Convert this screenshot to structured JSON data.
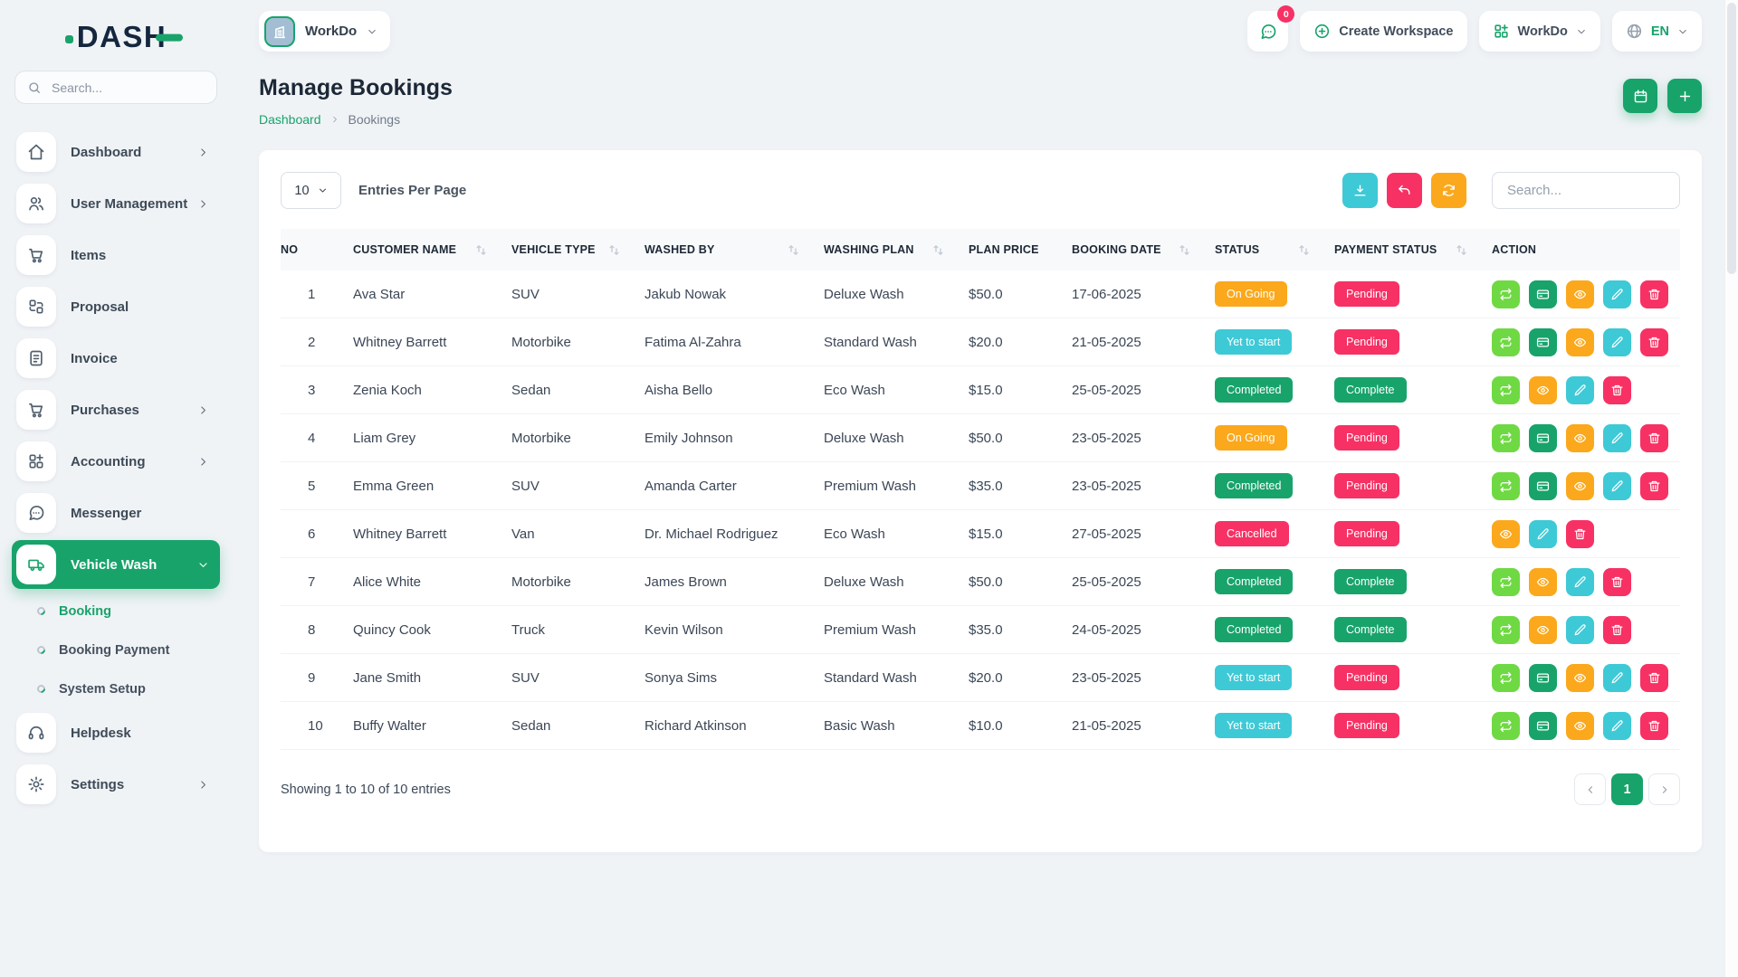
{
  "brand": {
    "name": "DASH"
  },
  "colors": {
    "green": "#18A36B",
    "green_light": "#6FD943",
    "orange": "#FBA81C",
    "cyan": "#3EC9D6",
    "pink": "#F73164"
  },
  "action_colors": {
    "repeat": "green_light",
    "card": "green",
    "eye": "orange",
    "edit": "cyan",
    "trash": "pink"
  },
  "sidebar": {
    "search_placeholder": "Search...",
    "menu": [
      {
        "type": "item",
        "icon": "home",
        "label": "Dashboard",
        "chevron": "right"
      },
      {
        "type": "item",
        "icon": "users",
        "label": "User Management",
        "chevron": "right"
      },
      {
        "type": "item",
        "icon": "cart",
        "label": "Items"
      },
      {
        "type": "item",
        "icon": "proposal",
        "label": "Proposal"
      },
      {
        "type": "item",
        "icon": "invoice",
        "label": "Invoice"
      },
      {
        "type": "item",
        "icon": "cart",
        "label": "Purchases",
        "chevron": "right"
      },
      {
        "type": "item",
        "icon": "grid-plus",
        "label": "Accounting",
        "chevron": "right"
      },
      {
        "type": "item",
        "icon": "chat",
        "label": "Messenger"
      },
      {
        "type": "item",
        "icon": "truck",
        "label": "Vehicle Wash",
        "chevron": "down",
        "active": true
      },
      {
        "type": "subitem",
        "label": "Booking",
        "active": true
      },
      {
        "type": "subitem",
        "label": "Booking Payment"
      },
      {
        "type": "subitem",
        "label": "System Setup"
      },
      {
        "type": "item",
        "icon": "headset",
        "label": "Helpdesk"
      },
      {
        "type": "item",
        "icon": "gear",
        "label": "Settings",
        "chevron": "right"
      }
    ]
  },
  "topbar": {
    "workspace": {
      "label": "WorkDo",
      "icon": "building"
    },
    "messages": {
      "icon": "chat",
      "badge": "0"
    },
    "create_workspace": {
      "label": "Create Workspace",
      "icon": "plus-circle"
    },
    "workspace_menu": {
      "label": "WorkDo",
      "icon": "grid-plus"
    },
    "language": {
      "label": "EN",
      "icon": "globe"
    }
  },
  "page": {
    "title": "Manage Bookings",
    "breadcrumb": {
      "parent": "Dashboard",
      "current": "Bookings"
    },
    "actions": [
      {
        "icon": "calendar",
        "color": "green",
        "name": "calendar-view-button"
      },
      {
        "icon": "plus",
        "color": "green",
        "name": "add-booking-button"
      }
    ]
  },
  "table_controls": {
    "entries_value": "10",
    "entries_label": "Entries Per Page",
    "search_placeholder": "Search...",
    "buttons": [
      {
        "icon": "download",
        "color": "cyan",
        "name": "export-button"
      },
      {
        "icon": "undo",
        "color": "pink",
        "name": "reset-button"
      },
      {
        "icon": "refresh",
        "color": "orange",
        "name": "reload-button"
      }
    ]
  },
  "table": {
    "headers": [
      {
        "label": "NO",
        "sortable": false
      },
      {
        "label": "CUSTOMER NAME",
        "sortable": true
      },
      {
        "label": "VEHICLE TYPE",
        "sortable": true
      },
      {
        "label": "WASHED BY",
        "sortable": true
      },
      {
        "label": "WASHING PLAN",
        "sortable": true
      },
      {
        "label": "PLAN PRICE",
        "sortable": false
      },
      {
        "label": "BOOKING DATE",
        "sortable": true
      },
      {
        "label": "STATUS",
        "sortable": true
      },
      {
        "label": "PAYMENT STATUS",
        "sortable": true
      },
      {
        "label": "ACTION",
        "sortable": false
      }
    ],
    "rows": [
      {
        "no": "1",
        "customer": "Ava Star",
        "vehicle": "SUV",
        "washed_by": "Jakub Nowak",
        "plan": "Deluxe Wash",
        "price": "$50.0",
        "date": "17-06-2025",
        "status": "On Going",
        "status_color": "orange",
        "payment": "Pending",
        "payment_color": "pink",
        "actions": [
          "repeat",
          "card",
          "eye",
          "edit",
          "trash"
        ]
      },
      {
        "no": "2",
        "customer": "Whitney Barrett",
        "vehicle": "Motorbike",
        "washed_by": "Fatima Al-Zahra",
        "plan": "Standard Wash",
        "price": "$20.0",
        "date": "21-05-2025",
        "status": "Yet to start",
        "status_color": "cyan",
        "payment": "Pending",
        "payment_color": "pink",
        "actions": [
          "repeat",
          "card",
          "eye",
          "edit",
          "trash"
        ]
      },
      {
        "no": "3",
        "customer": "Zenia Koch",
        "vehicle": "Sedan",
        "washed_by": "Aisha Bello",
        "plan": "Eco Wash",
        "price": "$15.0",
        "date": "25-05-2025",
        "status": "Completed",
        "status_color": "green",
        "payment": "Complete",
        "payment_color": "green",
        "actions": [
          "repeat",
          "eye",
          "edit",
          "trash"
        ]
      },
      {
        "no": "4",
        "customer": "Liam Grey",
        "vehicle": "Motorbike",
        "washed_by": "Emily Johnson",
        "plan": "Deluxe Wash",
        "price": "$50.0",
        "date": "23-05-2025",
        "status": "On Going",
        "status_color": "orange",
        "payment": "Pending",
        "payment_color": "pink",
        "actions": [
          "repeat",
          "card",
          "eye",
          "edit",
          "trash"
        ]
      },
      {
        "no": "5",
        "customer": "Emma Green",
        "vehicle": "SUV",
        "washed_by": "Amanda Carter",
        "plan": "Premium Wash",
        "price": "$35.0",
        "date": "23-05-2025",
        "status": "Completed",
        "status_color": "green",
        "payment": "Pending",
        "payment_color": "pink",
        "actions": [
          "repeat",
          "card",
          "eye",
          "edit",
          "trash"
        ]
      },
      {
        "no": "6",
        "customer": "Whitney Barrett",
        "vehicle": "Van",
        "washed_by": "Dr. Michael Rodriguez",
        "plan": "Eco Wash",
        "price": "$15.0",
        "date": "27-05-2025",
        "status": "Cancelled",
        "status_color": "pink",
        "payment": "Pending",
        "payment_color": "pink",
        "actions": [
          "eye",
          "edit",
          "trash"
        ]
      },
      {
        "no": "7",
        "customer": "Alice White",
        "vehicle": "Motorbike",
        "washed_by": "James Brown",
        "plan": "Deluxe Wash",
        "price": "$50.0",
        "date": "25-05-2025",
        "status": "Completed",
        "status_color": "green",
        "payment": "Complete",
        "payment_color": "green",
        "actions": [
          "repeat",
          "eye",
          "edit",
          "trash"
        ]
      },
      {
        "no": "8",
        "customer": "Quincy Cook",
        "vehicle": "Truck",
        "washed_by": "Kevin Wilson",
        "plan": "Premium Wash",
        "price": "$35.0",
        "date": "24-05-2025",
        "status": "Completed",
        "status_color": "green",
        "payment": "Complete",
        "payment_color": "green",
        "actions": [
          "repeat",
          "eye",
          "edit",
          "trash"
        ]
      },
      {
        "no": "9",
        "customer": "Jane Smith",
        "vehicle": "SUV",
        "washed_by": "Sonya Sims",
        "plan": "Standard Wash",
        "price": "$20.0",
        "date": "23-05-2025",
        "status": "Yet to start",
        "status_color": "cyan",
        "payment": "Pending",
        "payment_color": "pink",
        "actions": [
          "repeat",
          "card",
          "eye",
          "edit",
          "trash"
        ]
      },
      {
        "no": "10",
        "customer": "Buffy Walter",
        "vehicle": "Sedan",
        "washed_by": "Richard Atkinson",
        "plan": "Basic Wash",
        "price": "$10.0",
        "date": "21-05-2025",
        "status": "Yet to start",
        "status_color": "cyan",
        "payment": "Pending",
        "payment_color": "pink",
        "actions": [
          "repeat",
          "card",
          "eye",
          "edit",
          "trash"
        ]
      }
    ]
  },
  "footer": {
    "showing_text": "Showing 1 to 10 of 10 entries",
    "current_page": "1"
  }
}
